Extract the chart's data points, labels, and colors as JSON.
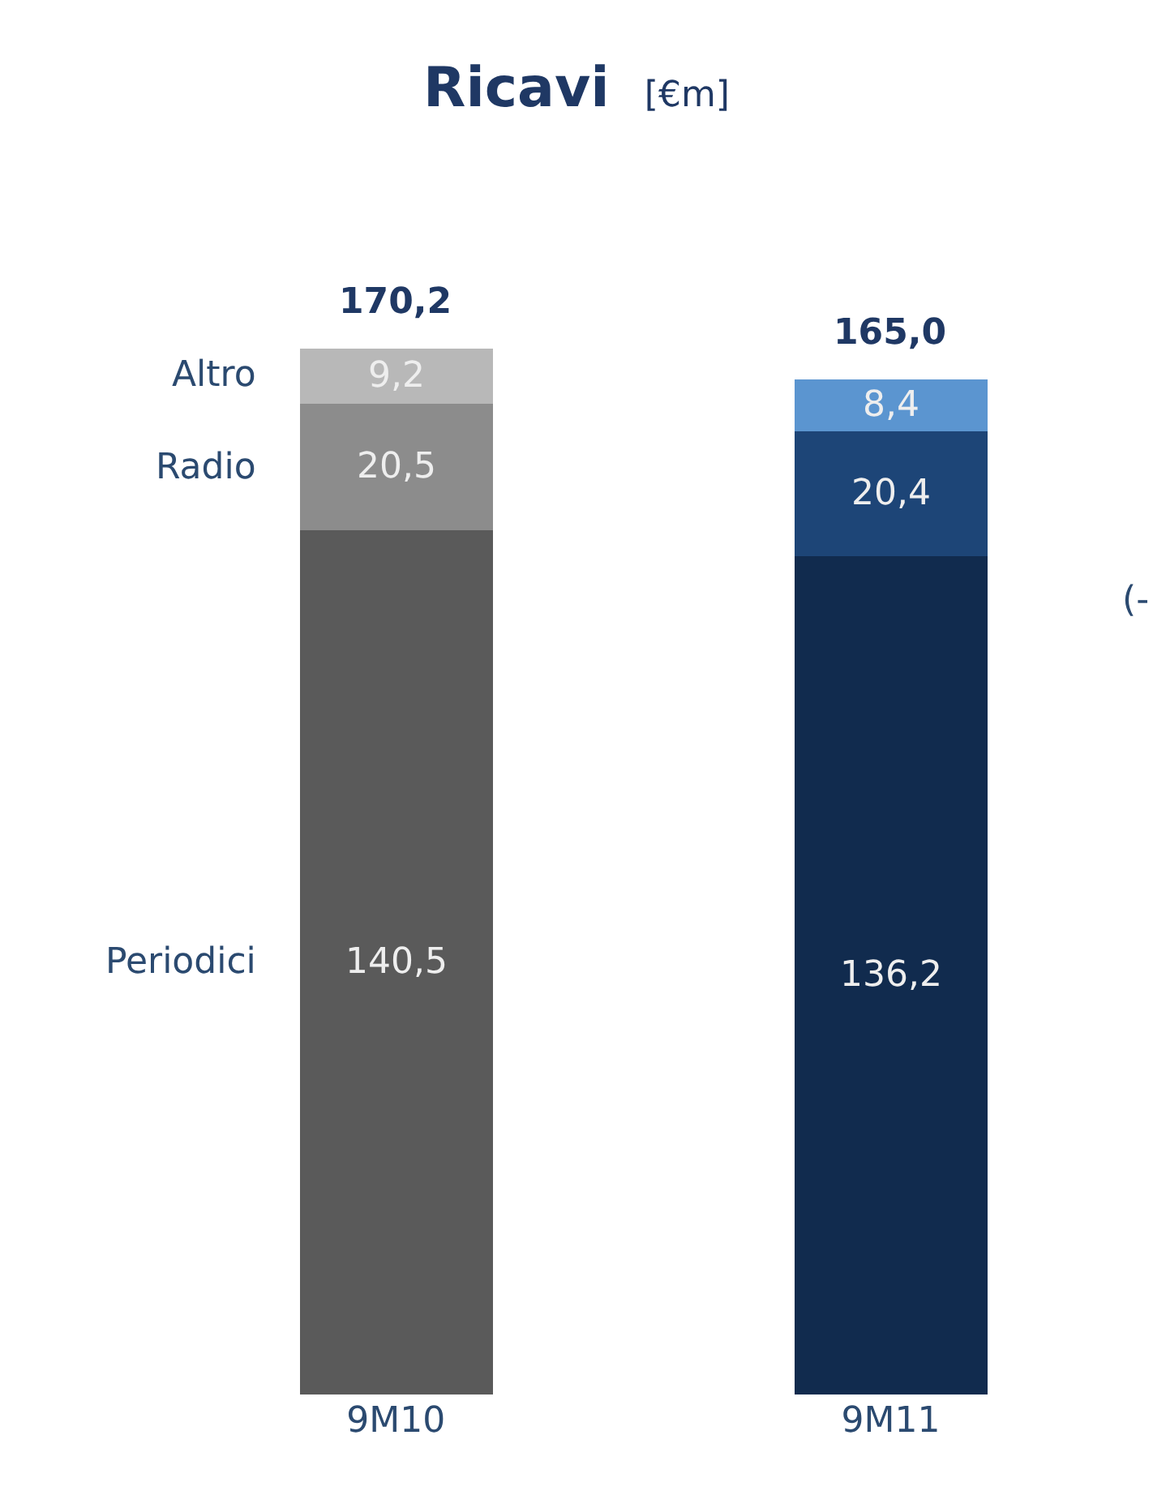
{
  "chart_data": {
    "type": "bar",
    "title": "Ricavi",
    "subtitle": "[€m]",
    "stacked": true,
    "legend": false,
    "categories": [
      "9M10",
      "9M11"
    ],
    "series": [
      {
        "name": "Periodici",
        "colors": [
          "#5a5a5a",
          "#112b4e"
        ],
        "values": [
          140.5,
          136.2
        ],
        "value_labels": [
          "140,5",
          "136,2"
        ]
      },
      {
        "name": "Radio",
        "colors": [
          "#8c8c8c",
          "#1d4577"
        ],
        "values": [
          20.5,
          20.4
        ],
        "value_labels": [
          "20,5",
          "20,4"
        ]
      },
      {
        "name": "Altro",
        "colors": [
          "#b8b8b8",
          "#5b95d0"
        ],
        "values": [
          9.2,
          8.4
        ],
        "value_labels": [
          "9,2",
          "8,4"
        ]
      }
    ],
    "totals": [
      "170,2",
      "165,0"
    ],
    "annotations": [
      "(-"
    ]
  }
}
